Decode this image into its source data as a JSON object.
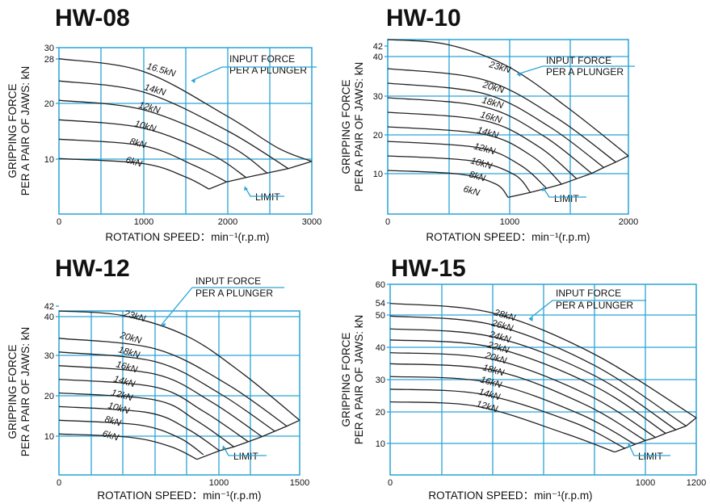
{
  "chart_data": [
    {
      "type": "line",
      "title": "HW-08",
      "xlabel": "ROTATION SPEED：min⁻¹(r.p.m)",
      "ylabel": [
        "GRIPPING FORCE",
        "PER A PAIR OF JAWS: kN"
      ],
      "x_ticks": [
        "0",
        "1000",
        "2000",
        "3000"
      ],
      "y_ticks": [
        "10",
        "20",
        "28",
        "30"
      ],
      "xlim": [
        0,
        3000
      ],
      "ylim": [
        0,
        30
      ],
      "annotation": [
        "INPUT FORCE",
        "PER A PLUNGER"
      ],
      "limit_label": "LIMIT",
      "series": [
        {
          "name": "16.5kN",
          "points": [
            [
              0,
              28
            ],
            [
              1000,
              25.7
            ],
            [
              2000,
              17.6
            ],
            [
              2600,
              11.9
            ],
            [
              3000,
              9.5
            ]
          ]
        },
        {
          "name": "14kN",
          "points": [
            [
              0,
              24
            ],
            [
              1000,
              22
            ],
            [
              2000,
              15
            ],
            [
              2720,
              8.2
            ]
          ]
        },
        {
          "name": "12kN",
          "points": [
            [
              0,
              20.5
            ],
            [
              1000,
              18.8
            ],
            [
              2000,
              12.5
            ],
            [
              2470,
              7.4
            ]
          ]
        },
        {
          "name": "10kN",
          "points": [
            [
              0,
              17
            ],
            [
              1000,
              15.5
            ],
            [
              1800,
              10.8
            ],
            [
              2220,
              6.6
            ]
          ]
        },
        {
          "name": "8kN",
          "points": [
            [
              0,
              13.5
            ],
            [
              1000,
              12.3
            ],
            [
              1600,
              8.8
            ],
            [
              1990,
              5.8
            ]
          ]
        },
        {
          "name": "6kN",
          "points": [
            [
              0,
              10
            ],
            [
              1000,
              9.1
            ],
            [
              1500,
              6.7
            ],
            [
              1780,
              4.5
            ]
          ]
        }
      ],
      "limit_line": [
        [
          1780,
          4.5
        ],
        [
          1990,
          5.8
        ],
        [
          2220,
          6.6
        ],
        [
          2470,
          7.4
        ],
        [
          2720,
          8.2
        ],
        [
          3000,
          9.5
        ]
      ]
    },
    {
      "type": "line",
      "title": "HW-10",
      "xlabel": "ROTATION SPEED：min⁻¹(r.p.m)",
      "ylabel": [
        "GRIPPING FORCE",
        "PER A PAIR OF JAWS: kN"
      ],
      "x_ticks": [
        "0",
        "1000",
        "2000"
      ],
      "y_ticks": [
        "10",
        "20",
        "30",
        "40",
        "42"
      ],
      "xlim": [
        0,
        2000
      ],
      "ylim": [
        0,
        42
      ],
      "annotation": [
        "INPUT FORCE",
        "PER A PLUNGER"
      ],
      "limit_label": "LIMIT",
      "series": [
        {
          "name": "23kN",
          "points": [
            [
              0,
              42
            ],
            [
              500,
              40.8
            ],
            [
              1000,
              35.5
            ],
            [
              1500,
              25.5
            ],
            [
              2000,
              14
            ]
          ]
        },
        {
          "name": "20kN",
          "points": [
            [
              0,
              35
            ],
            [
              800,
              32.3
            ],
            [
              1400,
              23.2
            ],
            [
              1895,
              12.5
            ]
          ]
        },
        {
          "name": "18kN",
          "points": [
            [
              0,
              31.5
            ],
            [
              800,
              29
            ],
            [
              1350,
              20.9
            ],
            [
              1795,
              11.2
            ]
          ]
        },
        {
          "name": "16kN",
          "points": [
            [
              0,
              28
            ],
            [
              800,
              25.8
            ],
            [
              1300,
              18.7
            ],
            [
              1695,
              9.8
            ]
          ]
        },
        {
          "name": "14kN",
          "points": [
            [
              0,
              24.5
            ],
            [
              800,
              22.5
            ],
            [
              1250,
              16.3
            ],
            [
              1570,
              8.5
            ]
          ]
        },
        {
          "name": "12kN",
          "points": [
            [
              0,
              21
            ],
            [
              800,
              19.2
            ],
            [
              1200,
              13.9
            ],
            [
              1445,
              7.2
            ]
          ]
        },
        {
          "name": "10kN",
          "points": [
            [
              0,
              17.5
            ],
            [
              750,
              16
            ],
            [
              1100,
              11.8
            ],
            [
              1320,
              6.2
            ]
          ]
        },
        {
          "name": "8kN",
          "points": [
            [
              0,
              14
            ],
            [
              700,
              12.8
            ],
            [
              1050,
              9.5
            ],
            [
              1185,
              5.2
            ]
          ]
        },
        {
          "name": "6kN",
          "points": [
            [
              0,
              10.5
            ],
            [
              600,
              9.6
            ],
            [
              900,
              7.2
            ],
            [
              1000,
              4
            ]
          ]
        }
      ],
      "limit_line": [
        [
          1000,
          4
        ],
        [
          1185,
          5.2
        ],
        [
          1320,
          6.2
        ],
        [
          1445,
          7.2
        ],
        [
          1570,
          8.5
        ],
        [
          1695,
          9.8
        ],
        [
          1795,
          11.2
        ],
        [
          1895,
          12.5
        ],
        [
          2000,
          14
        ]
      ]
    },
    {
      "type": "line",
      "title": "HW-12",
      "xlabel": "ROTATION SPEED：min⁻¹(r.p.m)",
      "ylabel": [
        "GRIPPING FORCE",
        "PER A PAIR OF JAWS: kN"
      ],
      "x_ticks": [
        "0",
        "1000",
        "1500"
      ],
      "y_ticks": [
        "10",
        "20",
        "30",
        "40",
        "42"
      ],
      "xlim": [
        0,
        1500
      ],
      "ylim": [
        0,
        42
      ],
      "annotation": [
        "INPUT FORCE",
        "PER A PLUNGER"
      ],
      "limit_label": "LIMIT",
      "series": [
        {
          "name": "23kN",
          "points": [
            [
              0,
              42
            ],
            [
              400,
              40.8
            ],
            [
              800,
              35.5
            ],
            [
              1150,
              25.8
            ],
            [
              1500,
              14
            ]
          ]
        },
        {
          "name": "20kN",
          "points": [
            [
              0,
              35
            ],
            [
              600,
              32.3
            ],
            [
              1050,
              23.2
            ],
            [
              1420,
              12.5
            ]
          ]
        },
        {
          "name": "18kN",
          "points": [
            [
              0,
              31.5
            ],
            [
              600,
              29
            ],
            [
              1000,
              20.9
            ],
            [
              1345,
              11.2
            ]
          ]
        },
        {
          "name": "16kN",
          "points": [
            [
              0,
              28
            ],
            [
              600,
              25.8
            ],
            [
              950,
              18.7
            ],
            [
              1265,
              9.8
            ]
          ]
        },
        {
          "name": "14kN",
          "points": [
            [
              0,
              24.5
            ],
            [
              600,
              22.5
            ],
            [
              900,
              16.3
            ],
            [
              1180,
              8.5
            ]
          ]
        },
        {
          "name": "12kN",
          "points": [
            [
              0,
              21
            ],
            [
              600,
              19.2
            ],
            [
              850,
              14.1
            ],
            [
              1090,
              7.2
            ]
          ]
        },
        {
          "name": "10kN",
          "points": [
            [
              0,
              17.5
            ],
            [
              550,
              16
            ],
            [
              800,
              11.8
            ],
            [
              1000,
              6.2
            ]
          ]
        },
        {
          "name": "8kN",
          "points": [
            [
              0,
              14
            ],
            [
              500,
              12.8
            ],
            [
              750,
              9.5
            ],
            [
              900,
              5.2
            ]
          ]
        },
        {
          "name": "6kN",
          "points": [
            [
              0,
              10.5
            ],
            [
              450,
              9.6
            ],
            [
              700,
              7.2
            ],
            [
              860,
              4
            ]
          ]
        }
      ],
      "limit_line": [
        [
          860,
          4
        ],
        [
          1000,
          6.2
        ],
        [
          1090,
          7.2
        ],
        [
          1180,
          8.5
        ],
        [
          1265,
          9.8
        ],
        [
          1345,
          11.2
        ],
        [
          1420,
          12.5
        ],
        [
          1500,
          14
        ]
      ]
    },
    {
      "type": "line",
      "title": "HW-15",
      "xlabel": "ROTATION SPEED：min⁻¹(r.p.m)",
      "ylabel": [
        "GRIPPING FORCE",
        "PER A PAIR OF JAWS: kN"
      ],
      "x_ticks": [
        "0",
        "1000",
        "1200"
      ],
      "y_ticks": [
        "10",
        "20",
        "30",
        "40",
        "50",
        "54",
        "60"
      ],
      "xlim": [
        0,
        1200
      ],
      "ylim": [
        0,
        60
      ],
      "annotation": [
        "INPUT FORCE",
        "PER A PLUNGER"
      ],
      "limit_label": "LIMIT",
      "series": [
        {
          "name": "28kN",
          "points": [
            [
              0,
              54
            ],
            [
              400,
              51
            ],
            [
              800,
              38
            ],
            [
              1200,
              18
            ]
          ]
        },
        {
          "name": "26kN",
          "points": [
            [
              0,
              50
            ],
            [
              400,
              47.3
            ],
            [
              800,
              34.5
            ],
            [
              1160,
              15.4
            ]
          ]
        },
        {
          "name": "24kN",
          "points": [
            [
              0,
              46
            ],
            [
              400,
              43.5
            ],
            [
              800,
              31.3
            ],
            [
              1120,
              14.2
            ]
          ]
        },
        {
          "name": "22kN",
          "points": [
            [
              0,
              42.5
            ],
            [
              400,
              40.2
            ],
            [
              800,
              28
            ],
            [
              1080,
              13.1
            ]
          ]
        },
        {
          "name": "20kN",
          "points": [
            [
              0,
              38.5
            ],
            [
              400,
              36.4
            ],
            [
              780,
              25
            ],
            [
              1040,
              11.8
            ]
          ]
        },
        {
          "name": "18kN",
          "points": [
            [
              0,
              35
            ],
            [
              400,
              33
            ],
            [
              760,
              22.3
            ],
            [
              1000,
              10.8
            ]
          ]
        },
        {
          "name": "16kN",
          "points": [
            [
              0,
              31
            ],
            [
              380,
              29.2
            ],
            [
              740,
              19.3
            ],
            [
              960,
              9.6
            ]
          ]
        },
        {
          "name": "14kN",
          "points": [
            [
              0,
              27
            ],
            [
              360,
              25.4
            ],
            [
              720,
              16.5
            ],
            [
              920,
              8.4
            ]
          ]
        },
        {
          "name": "12kN",
          "points": [
            [
              0,
              23
            ],
            [
              340,
              21.6
            ],
            [
              680,
              13.2
            ],
            [
              880,
              7.2
            ]
          ]
        }
      ],
      "limit_line": [
        [
          880,
          7.2
        ],
        [
          920,
          8.4
        ],
        [
          960,
          9.6
        ],
        [
          1000,
          10.8
        ],
        [
          1040,
          11.8
        ],
        [
          1080,
          13.1
        ],
        [
          1120,
          14.2
        ],
        [
          1160,
          15.4
        ],
        [
          1200,
          18
        ]
      ]
    }
  ]
}
